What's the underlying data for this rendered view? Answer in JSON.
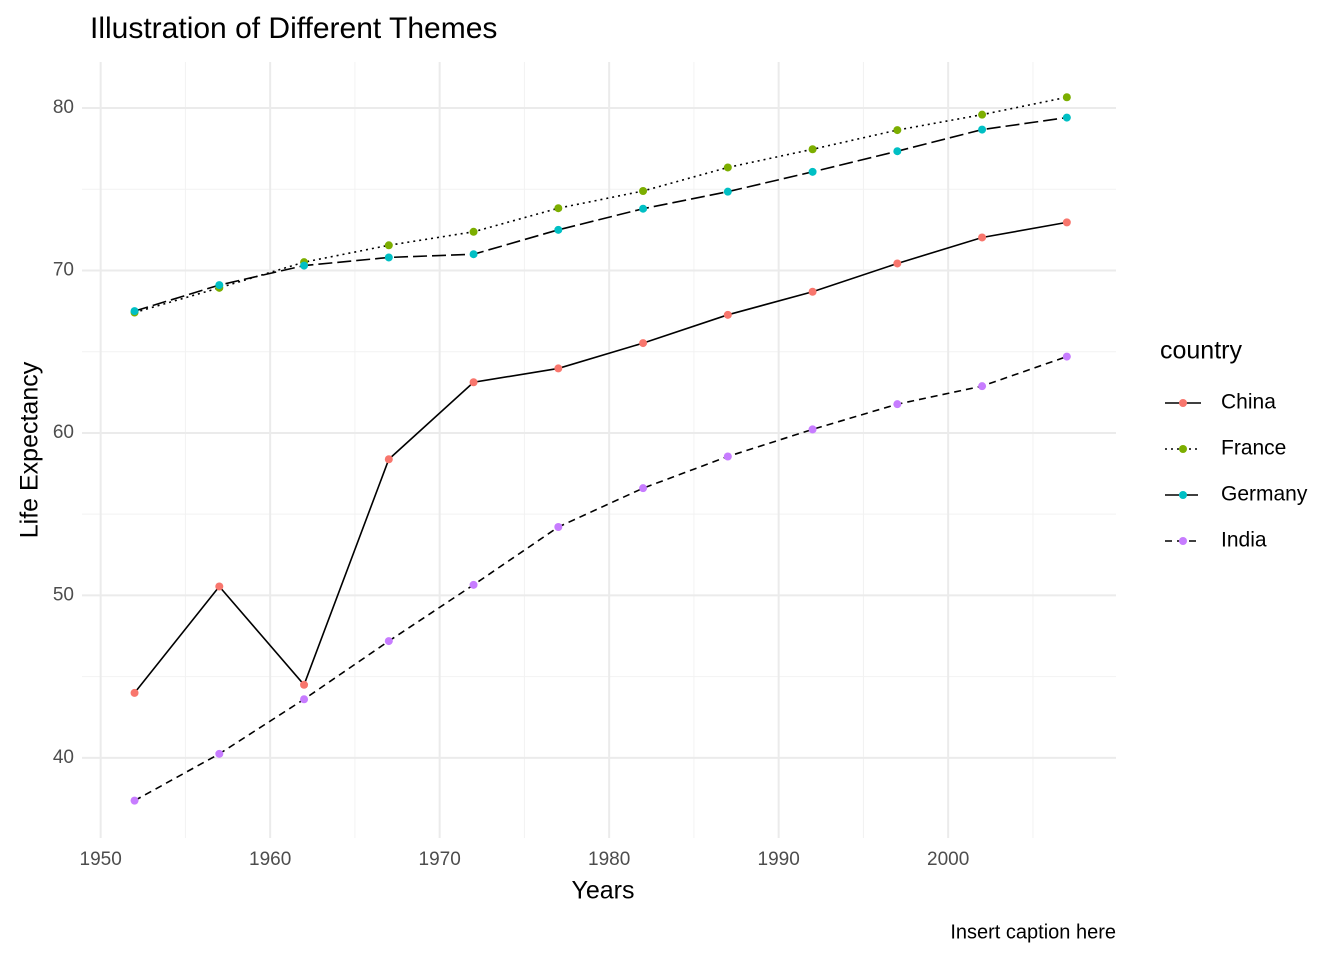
{
  "chart_data": {
    "type": "line",
    "title": "Illustration of Different Themes",
    "xlabel": "Years",
    "ylabel": "Life Expectancy",
    "caption": "Insert caption here",
    "legend_title": "country",
    "legend_position": "right",
    "x": [
      1952,
      1957,
      1962,
      1967,
      1972,
      1977,
      1982,
      1987,
      1992,
      1997,
      2002,
      2007
    ],
    "series": [
      {
        "name": "China",
        "color": "#F8766D",
        "linetype": "solid",
        "values": [
          44.0,
          50.55,
          44.5,
          58.38,
          63.12,
          63.97,
          65.53,
          67.27,
          68.69,
          70.43,
          72.03,
          72.96
        ]
      },
      {
        "name": "France",
        "color": "#7CAE00",
        "linetype": "dotted",
        "values": [
          67.41,
          68.93,
          70.51,
          71.55,
          72.38,
          73.83,
          74.89,
          76.34,
          77.46,
          78.64,
          79.59,
          80.66
        ]
      },
      {
        "name": "Germany",
        "color": "#00BFC4",
        "linetype": "longdash",
        "values": [
          67.5,
          69.1,
          70.3,
          70.8,
          71.0,
          72.5,
          73.8,
          74.85,
          76.07,
          77.34,
          78.67,
          79.41
        ]
      },
      {
        "name": "India",
        "color": "#C77CFF",
        "linetype": "dashed",
        "values": [
          37.37,
          40.25,
          43.61,
          47.19,
          50.65,
          54.21,
          56.6,
          58.55,
          60.22,
          61.77,
          62.88,
          64.7
        ]
      }
    ],
    "xlim": [
      1948.9,
      2009.9
    ],
    "ylim": [
      35.07,
      82.83
    ],
    "xticks": [
      1950,
      1960,
      1970,
      1980,
      1990,
      2000
    ],
    "yticks": [
      40,
      50,
      60,
      70,
      80
    ],
    "xminor": [
      1955,
      1965,
      1975,
      1985,
      1995,
      2005
    ],
    "yminor": [
      45,
      55,
      65,
      75
    ],
    "grid": true
  }
}
